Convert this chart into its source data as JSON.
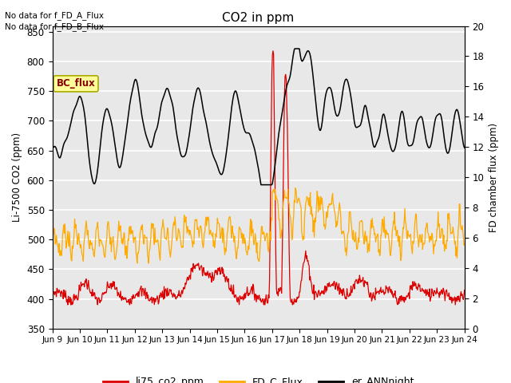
{
  "title": "CO2 in ppm",
  "ylabel_left": "Li-7500 CO2 (ppm)",
  "ylabel_right": "FD chamber flux (ppm)",
  "xlim": [
    0,
    15
  ],
  "ylim_left": [
    350,
    860
  ],
  "ylim_right": [
    0,
    20
  ],
  "yticks_left": [
    350,
    400,
    450,
    500,
    550,
    600,
    650,
    700,
    750,
    800,
    850
  ],
  "yticks_right": [
    0,
    2,
    4,
    6,
    8,
    10,
    12,
    14,
    16,
    18,
    20
  ],
  "xtick_labels": [
    "Jun 9",
    "Jun 10",
    "Jun 11",
    "Jun 12",
    "Jun 13",
    "Jun 14",
    "Jun 15",
    "Jun 16",
    "Jun 17",
    "Jun 18",
    "Jun 19",
    "Jun 20",
    "Jun 21",
    "Jun 22",
    "Jun 23",
    "Jun 24"
  ],
  "bg_color": "#e8e8e8",
  "grid_color": "#ffffff",
  "annotations": [
    "No data for f_FD_A_Flux",
    "No data for f_FD_B_Flux"
  ],
  "legend_label_bc": "BC_flux",
  "legend_entries": [
    "li75_co2_ppm",
    "FD_C_Flux",
    "er_ANNnight"
  ],
  "colors": {
    "red": "#dd0000",
    "orange": "#ffaa00",
    "black": "#000000"
  },
  "bc_box_facecolor": "#ffff99",
  "bc_box_edgecolor": "#aaaa00",
  "bc_text_color": "#880000"
}
